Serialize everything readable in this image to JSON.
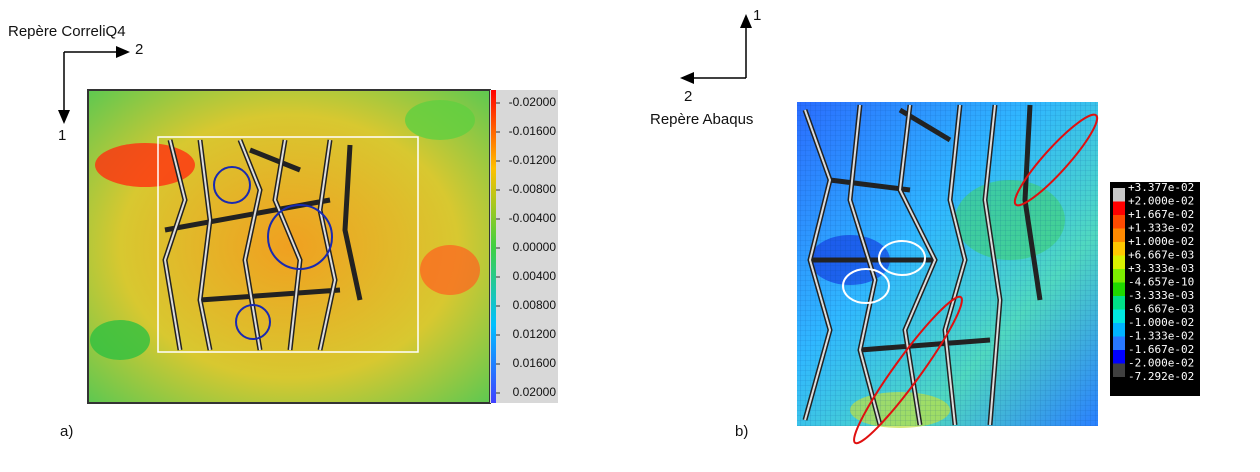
{
  "panel_a": {
    "label": "a)",
    "frame_title": "Repère CorreliQ4",
    "axis_2": "2",
    "axis_1": "1",
    "colorbar_labels": [
      "-0.02000",
      "-0.01600",
      "-0.01200",
      "-0.00800",
      "-0.00400",
      "0.00000",
      "0.00400",
      "0.00800",
      "0.01200",
      "0.01600",
      "0.02000"
    ]
  },
  "panel_b": {
    "label": "b)",
    "frame_title": "Repère Abaqus",
    "axis_1": "1",
    "axis_2": "2",
    "legend_labels": [
      "+3.377e-02",
      "+2.000e-02",
      "+1.667e-02",
      "+1.333e-02",
      "+1.000e-02",
      "+6.667e-03",
      "+3.333e-03",
      "-4.657e-10",
      "-3.333e-03",
      "-6.667e-03",
      "-1.000e-02",
      "-1.333e-02",
      "-1.667e-02",
      "-2.000e-02",
      "-7.292e-02"
    ],
    "legend_colors": [
      "#c8c8c8",
      "#ff0000",
      "#ff4a00",
      "#ff8a00",
      "#ffc800",
      "#d8f000",
      "#7cec00",
      "#20d800",
      "#00e088",
      "#00e8e0",
      "#00b4ff",
      "#2878ff",
      "#0000ff",
      "#404040"
    ]
  }
}
